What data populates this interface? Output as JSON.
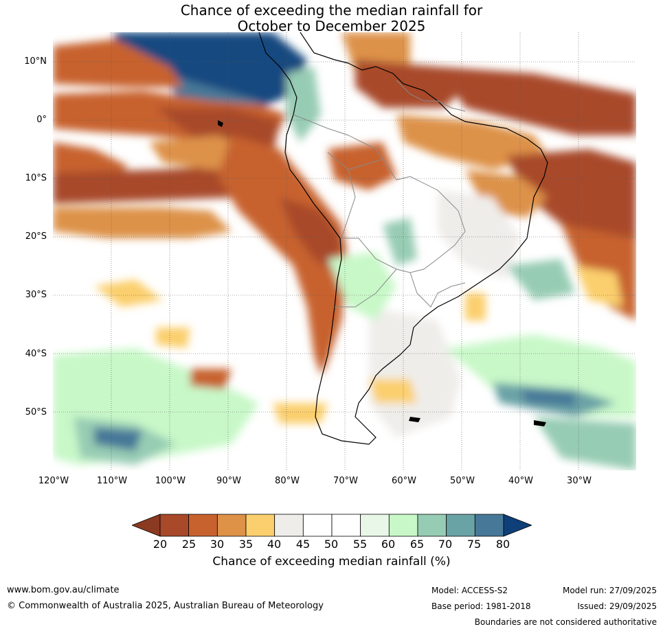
{
  "title_line1": "Chance of exceeding the median rainfall for",
  "title_line2": "October to December 2025",
  "lat_ticks": [
    "10°N",
    "0°",
    "10°S",
    "20°S",
    "30°S",
    "40°S",
    "50°S"
  ],
  "lon_ticks": [
    "120°W",
    "110°W",
    "100°W",
    "90°W",
    "80°W",
    "70°W",
    "60°W",
    "50°W",
    "40°W",
    "30°W"
  ],
  "colorbar": {
    "labels": [
      "20",
      "25",
      "30",
      "35",
      "40",
      "45",
      "50",
      "55",
      "60",
      "65",
      "70",
      "75",
      "80"
    ],
    "colors": [
      "#a8492a",
      "#c7622f",
      "#dd9248",
      "#fbcf6d",
      "#efedea",
      "#ffffff",
      "#ffffff",
      "#e9f7e9",
      "#c8f8c8",
      "#97ccb4",
      "#6aa3a6",
      "#477898",
      "#124a80"
    ],
    "under_color": "#8b3a22",
    "over_color": "#0e3f78",
    "title": "Chance of exceeding median rainfall (%)"
  },
  "footer": {
    "website": "www.bom.gov.au/climate",
    "copyright": "© Commonwealth of Australia 2025, Australian Bureau of Meteorology",
    "model": "Model: ACCESS-S2",
    "base_period": "Base period: 1981-2018",
    "model_run": "Model run: 27/09/2025",
    "issued": "Issued: 29/09/2025",
    "disclaimer": "Boundaries are not considered authoritative"
  }
}
